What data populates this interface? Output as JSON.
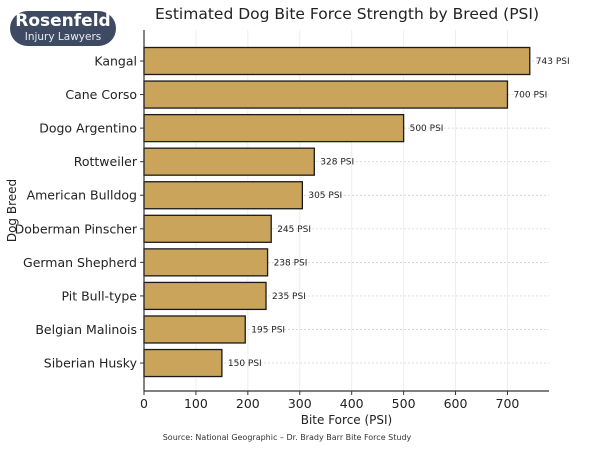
{
  "logo": {
    "name": "Rosenfeld",
    "subtitle": "Injury Lawyers"
  },
  "chart_data": {
    "type": "bar",
    "orientation": "horizontal",
    "title": "Estimated Dog Bite Force Strength by Breed (PSI)",
    "xlabel": "Bite Force (PSI)",
    "ylabel": "Dog Breed",
    "categories": [
      "Kangal",
      "Cane Corso",
      "Dogo Argentino",
      "Rottweiler",
      "American Bulldog",
      "Doberman Pinscher",
      "German Shepherd",
      "Pit Bull-type",
      "Belgian Malinois",
      "Siberian Husky"
    ],
    "values": [
      743,
      700,
      500,
      328,
      305,
      245,
      238,
      235,
      195,
      150
    ],
    "data_labels": [
      "743 PSI",
      "700 PSI",
      "500 PSI",
      "328 PSI",
      "305 PSI",
      "245 PSI",
      "238 PSI",
      "235 PSI",
      "195 PSI",
      "150 PSI"
    ],
    "xlim": [
      0,
      780
    ],
    "xticks": [
      0,
      100,
      200,
      300,
      400,
      500,
      600,
      700
    ],
    "grid": true,
    "bar_color": "#c9a45a",
    "edge_color": "#1a1a1a",
    "source": "Source: National Geographic – Dr. Brady Barr Bite Force Study"
  }
}
